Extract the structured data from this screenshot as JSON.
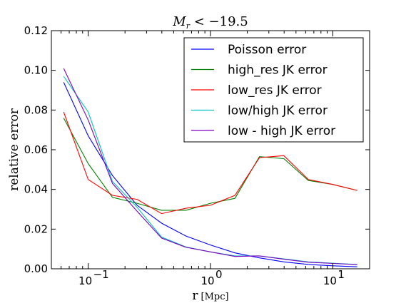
{
  "chart_data": {
    "type": "line",
    "title": "M_r < −19.5",
    "xlabel": "r",
    "xlabel_unit": "[Mpc]",
    "ylabel": "relative error",
    "xscale": "log",
    "xlim": [
      0.05,
      20
    ],
    "ylim": [
      0,
      0.12
    ],
    "yticks": [
      0.0,
      0.02,
      0.04,
      0.06,
      0.08,
      0.1,
      0.12
    ],
    "ytick_labels": [
      "0.00",
      "0.02",
      "0.04",
      "0.06",
      "0.08",
      "0.10",
      "0.12"
    ],
    "xticks": [
      0.1,
      1,
      10
    ],
    "xtick_labels": [
      "10",
      "10",
      "10"
    ],
    "xtick_exponents": [
      "−1",
      "0",
      "1"
    ],
    "legend_position": "top-right",
    "grid": false,
    "x": [
      0.063,
      0.1,
      0.158,
      0.251,
      0.398,
      0.631,
      1.0,
      1.585,
      2.512,
      3.981,
      6.31,
      10.0,
      15.85
    ],
    "series": [
      {
        "name": "Poisson error",
        "color": "#0000ff",
        "values": [
          0.094,
          0.067,
          0.047,
          0.032,
          0.023,
          0.0165,
          0.012,
          0.008,
          0.0055,
          0.0035,
          0.0022,
          0.0015,
          0.001
        ]
      },
      {
        "name": "high_res JK error",
        "color": "#008000",
        "values": [
          0.076,
          0.053,
          0.036,
          0.033,
          0.0295,
          0.0295,
          0.033,
          0.0355,
          0.0565,
          0.0555,
          0.0445,
          0.0425,
          0.0395
        ]
      },
      {
        "name": "low_res JK error",
        "color": "#ff0000",
        "values": [
          0.079,
          0.045,
          0.037,
          0.035,
          0.0278,
          0.0305,
          0.032,
          0.037,
          0.056,
          0.057,
          0.045,
          0.0425,
          0.0395
        ]
      },
      {
        "name": "low/high JK error",
        "color": "#00bfbf",
        "values": [
          0.097,
          0.079,
          0.044,
          0.031,
          0.016,
          0.011,
          0.0085,
          0.0065,
          0.0065,
          0.005,
          0.0035,
          0.0028,
          0.0022
        ]
      },
      {
        "name": "low - high JK error",
        "color": "#7f00bf",
        "values": [
          0.101,
          0.075,
          0.043,
          0.029,
          0.0155,
          0.0108,
          0.0085,
          0.0062,
          0.0065,
          0.0048,
          0.0033,
          0.0027,
          0.0021
        ]
      }
    ]
  }
}
